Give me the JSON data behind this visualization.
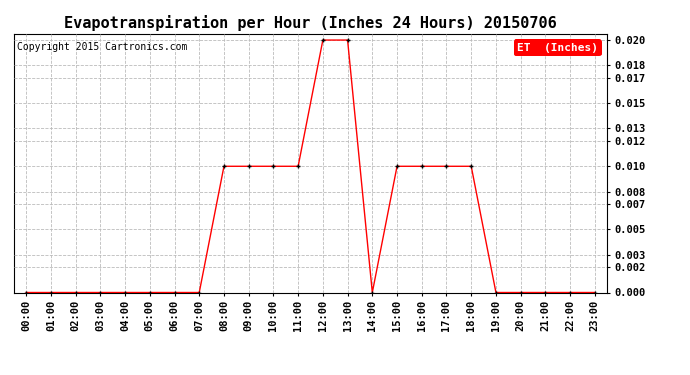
{
  "title": "Evapotranspiration per Hour (Inches 24 Hours) 20150706",
  "copyright": "Copyright 2015 Cartronics.com",
  "legend_label": "ET  (Inches)",
  "legend_bg": "#ff0000",
  "legend_text_color": "#ffffff",
  "hours": [
    "00:00",
    "01:00",
    "02:00",
    "03:00",
    "04:00",
    "05:00",
    "06:00",
    "07:00",
    "08:00",
    "09:00",
    "10:00",
    "11:00",
    "12:00",
    "13:00",
    "14:00",
    "15:00",
    "16:00",
    "17:00",
    "18:00",
    "19:00",
    "20:00",
    "21:00",
    "22:00",
    "23:00"
  ],
  "values": [
    0.0,
    0.0,
    0.0,
    0.0,
    0.0,
    0.0,
    0.0,
    0.0,
    0.01,
    0.01,
    0.01,
    0.01,
    0.02,
    0.02,
    0.0,
    0.01,
    0.01,
    0.01,
    0.01,
    0.0,
    0.0,
    0.0,
    0.0,
    0.0
  ],
  "line_color": "#ff0000",
  "marker_color": "#000000",
  "ylim": [
    0.0,
    0.0205
  ],
  "yticks": [
    0.0,
    0.002,
    0.003,
    0.005,
    0.007,
    0.008,
    0.01,
    0.012,
    0.013,
    0.015,
    0.017,
    0.018,
    0.02
  ],
  "grid_color": "#bbbbbb",
  "bg_color": "#ffffff",
  "title_fontsize": 11,
  "copyright_fontsize": 7,
  "tick_fontsize": 7.5
}
